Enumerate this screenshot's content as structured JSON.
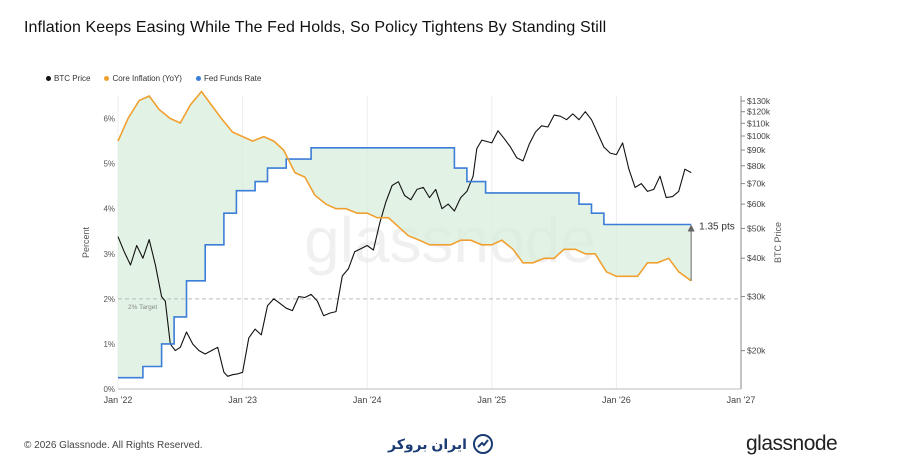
{
  "chart_data": {
    "type": "line",
    "title": "Inflation Keeps Easing While The Fed Holds, So Policy Tightens By Standing Still",
    "ylabel_left": "Percent",
    "ylabel_right": "BTC Price",
    "x_ticks": [
      "Jan '22",
      "Jan '23",
      "Jan '24",
      "Jan '25",
      "Jan '26",
      "Jan '27"
    ],
    "y_left_ticks": [
      "0%",
      "1%",
      "2%",
      "3%",
      "4%",
      "5%",
      "6%"
    ],
    "y_left_range": [
      0,
      6.5
    ],
    "y_right_ticks": [
      "$20k",
      "$30k",
      "$40k",
      "$50k",
      "$60k",
      "$70k",
      "$80k",
      "$90k",
      "$100k",
      "$110k",
      "$120k",
      "$130k"
    ],
    "y_right_scale": "log",
    "target_label": "2% Target",
    "target_value": 2,
    "annotation": "1.35 pts",
    "grid": true,
    "legend_position": "top-left",
    "series": [
      {
        "name": "BTC Price",
        "color": "#111111",
        "axis": "right",
        "x": [
          2022.0,
          2022.05,
          2022.1,
          2022.15,
          2022.2,
          2022.25,
          2022.3,
          2022.35,
          2022.38,
          2022.42,
          2022.46,
          2022.5,
          2022.55,
          2022.6,
          2022.65,
          2022.7,
          2022.75,
          2022.8,
          2022.85,
          2022.88,
          2022.92,
          2022.96,
          2023.0,
          2023.05,
          2023.1,
          2023.15,
          2023.2,
          2023.25,
          2023.3,
          2023.35,
          2023.4,
          2023.45,
          2023.5,
          2023.55,
          2023.6,
          2023.65,
          2023.7,
          2023.75,
          2023.8,
          2023.85,
          2023.9,
          2023.95,
          2024.0,
          2024.05,
          2024.1,
          2024.15,
          2024.2,
          2024.25,
          2024.3,
          2024.35,
          2024.4,
          2024.45,
          2024.5,
          2024.55,
          2024.6,
          2024.65,
          2024.7,
          2024.75,
          2024.8,
          2024.85,
          2024.88,
          2024.92,
          2024.96,
          2025.0,
          2025.05,
          2025.1,
          2025.15,
          2025.2,
          2025.25,
          2025.3,
          2025.35,
          2025.4,
          2025.45,
          2025.5,
          2025.55,
          2025.6,
          2025.65,
          2025.7,
          2025.75,
          2025.8,
          2025.85,
          2025.9,
          2025.95,
          2026.0,
          2026.05,
          2026.1,
          2026.15,
          2026.2,
          2026.25,
          2026.3,
          2026.35,
          2026.4,
          2026.45,
          2026.5,
          2026.55,
          2026.6
        ],
        "y": [
          47000,
          42000,
          38000,
          44000,
          40000,
          46000,
          38000,
          30000,
          29000,
          21000,
          20000,
          20500,
          23000,
          21000,
          20000,
          19500,
          20000,
          20500,
          17000,
          16500,
          16700,
          16800,
          17000,
          22000,
          23500,
          22500,
          28000,
          29500,
          28500,
          27500,
          27000,
          30000,
          29800,
          30500,
          29000,
          26000,
          26500,
          26800,
          35000,
          37000,
          42000,
          43000,
          44000,
          42500,
          52000,
          61000,
          69000,
          71000,
          64000,
          62000,
          67000,
          68000,
          63000,
          67000,
          58000,
          60000,
          57000,
          63000,
          66000,
          74000,
          91000,
          97000,
          96000,
          95000,
          104000,
          98000,
          92000,
          85000,
          83000,
          94000,
          103000,
          108000,
          107000,
          117000,
          116000,
          113000,
          118000,
          113000,
          120000,
          113000,
          102000,
          92000,
          88000,
          87000,
          95000,
          78000,
          68000,
          70000,
          66000,
          67000,
          74000,
          63000,
          63500,
          66000,
          78000,
          76000
        ]
      },
      {
        "name": "Core Inflation (YoY)",
        "color": "#f0a030",
        "axis": "left",
        "x": [
          2022.0,
          2022.08,
          2022.17,
          2022.25,
          2022.33,
          2022.42,
          2022.5,
          2022.58,
          2022.67,
          2022.75,
          2022.83,
          2022.92,
          2023.0,
          2023.08,
          2023.17,
          2023.25,
          2023.33,
          2023.42,
          2023.5,
          2023.58,
          2023.67,
          2023.75,
          2023.83,
          2023.92,
          2024.0,
          2024.08,
          2024.17,
          2024.25,
          2024.33,
          2024.42,
          2024.5,
          2024.58,
          2024.67,
          2024.75,
          2024.83,
          2024.92,
          2025.0,
          2025.08,
          2025.17,
          2025.25,
          2025.33,
          2025.42,
          2025.5,
          2025.58,
          2025.67,
          2025.75,
          2025.83,
          2025.92,
          2026.0,
          2026.08,
          2026.17,
          2026.25,
          2026.33,
          2026.42,
          2026.5,
          2026.6
        ],
        "y": [
          5.5,
          6.0,
          6.4,
          6.5,
          6.2,
          6.0,
          5.9,
          6.3,
          6.6,
          6.3,
          6.0,
          5.7,
          5.6,
          5.5,
          5.6,
          5.5,
          5.3,
          4.8,
          4.7,
          4.3,
          4.1,
          4.0,
          4.0,
          3.9,
          3.9,
          3.8,
          3.8,
          3.6,
          3.4,
          3.3,
          3.2,
          3.2,
          3.2,
          3.3,
          3.3,
          3.2,
          3.2,
          3.3,
          3.1,
          2.8,
          2.8,
          2.9,
          2.9,
          3.1,
          3.1,
          3.0,
          3.0,
          2.6,
          2.5,
          2.5,
          2.5,
          2.8,
          2.8,
          2.9,
          2.6,
          2.4
        ]
      },
      {
        "name": "Fed Funds Rate",
        "color": "#3b7dd8",
        "axis": "left",
        "x": [
          2022.0,
          2022.2,
          2022.2,
          2022.35,
          2022.35,
          2022.45,
          2022.45,
          2022.55,
          2022.55,
          2022.7,
          2022.7,
          2022.85,
          2022.85,
          2022.95,
          2022.95,
          2023.1,
          2023.1,
          2023.2,
          2023.2,
          2023.35,
          2023.35,
          2023.55,
          2023.55,
          2024.7,
          2024.7,
          2024.8,
          2024.8,
          2024.95,
          2024.95,
          2025.7,
          2025.7,
          2025.8,
          2025.8,
          2025.9,
          2025.9,
          2026.6
        ],
        "y": [
          0.25,
          0.25,
          0.5,
          0.5,
          1.0,
          1.0,
          1.6,
          1.6,
          2.4,
          2.4,
          3.2,
          3.2,
          3.9,
          3.9,
          4.4,
          4.4,
          4.6,
          4.6,
          4.9,
          4.9,
          5.1,
          5.1,
          5.35,
          5.35,
          4.9,
          4.9,
          4.6,
          4.6,
          4.35,
          4.35,
          4.1,
          4.1,
          3.9,
          3.9,
          3.65,
          3.65
        ]
      }
    ]
  },
  "footer": {
    "copyright": "© 2026 Glassnode. All Rights Reserved.",
    "brand": "glassnode",
    "watermark": "glassnode",
    "mid_logo_text": "ایران بروکر"
  }
}
